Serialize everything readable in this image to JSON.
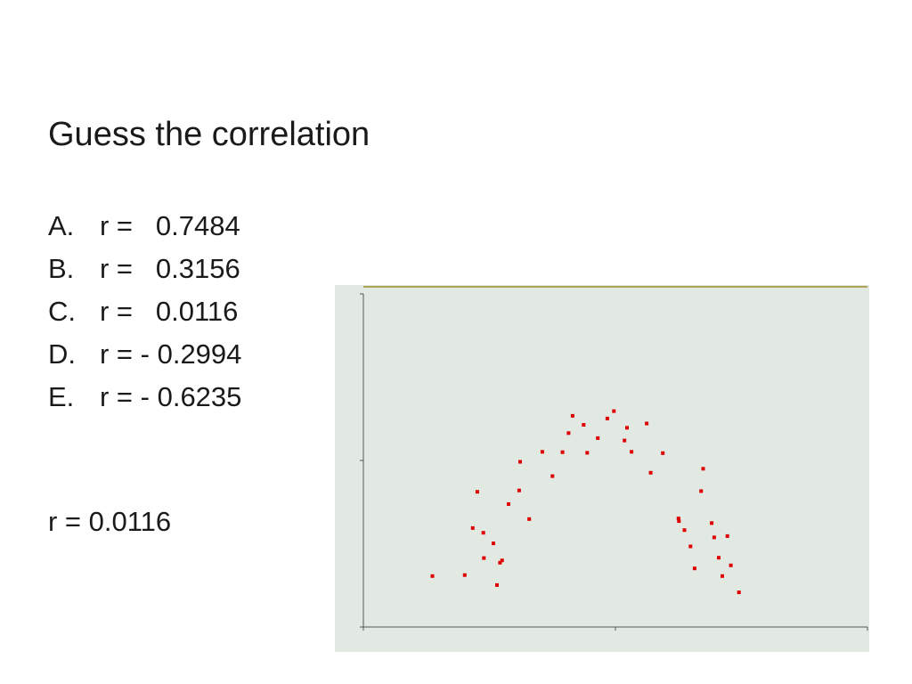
{
  "title": "Guess the correlation",
  "options": [
    {
      "letter": "A.",
      "text": "r =   0.7484"
    },
    {
      "letter": "B.",
      "text": "r =   0.3156"
    },
    {
      "letter": "C.",
      "text": "r =   0.0116"
    },
    {
      "letter": "D.",
      "text": "r = - 0.2994"
    },
    {
      "letter": "E.",
      "text": "r = - 0.6235"
    }
  ],
  "answer": "r = 0.0116",
  "colors": {
    "plot_background": "#e2e9e3",
    "point": "#dd0000",
    "axis": "#555555",
    "top_border": "#9a8a2a"
  },
  "chart_data": {
    "type": "scatter",
    "title": "",
    "xlabel": "",
    "ylabel": "",
    "xlim": [
      0,
      100
    ],
    "ylim": [
      0,
      100
    ],
    "grid": false,
    "legend": "none",
    "series": [
      {
        "points": [
          [
            13.7,
            15.3
          ],
          [
            20.1,
            15.6
          ],
          [
            23.8,
            28.3
          ],
          [
            22.6,
            40.6
          ],
          [
            27.5,
            20.0
          ],
          [
            25.8,
            25.1
          ],
          [
            23.9,
            20.7
          ],
          [
            26.5,
            12.6
          ],
          [
            21.7,
            29.7
          ],
          [
            27.1,
            19.3
          ],
          [
            28.8,
            36.9
          ],
          [
            31.1,
            49.6
          ],
          [
            30.9,
            41.0
          ],
          [
            32.9,
            32.4
          ],
          [
            35.5,
            52.6
          ],
          [
            37.5,
            45.3
          ],
          [
            39.5,
            52.5
          ],
          [
            40.7,
            58.2
          ],
          [
            41.5,
            63.4
          ],
          [
            43.7,
            60.7
          ],
          [
            44.4,
            52.3
          ],
          [
            46.5,
            56.7
          ],
          [
            48.4,
            62.6
          ],
          [
            49.7,
            64.8
          ],
          [
            51.8,
            56.0
          ],
          [
            52.3,
            59.8
          ],
          [
            53.2,
            52.6
          ],
          [
            56.2,
            61.1
          ],
          [
            57.0,
            46.3
          ],
          [
            59.4,
            52.2
          ],
          [
            62.5,
            32.6
          ],
          [
            62.6,
            31.8
          ],
          [
            63.7,
            29.1
          ],
          [
            64.9,
            24.2
          ],
          [
            65.7,
            17.6
          ],
          [
            67.0,
            40.8
          ],
          [
            67.4,
            47.5
          ],
          [
            69.1,
            31.2
          ],
          [
            69.6,
            26.9
          ],
          [
            70.5,
            20.8
          ],
          [
            71.2,
            15.3
          ],
          [
            72.2,
            27.3
          ],
          [
            72.9,
            18.5
          ],
          [
            74.5,
            10.4
          ]
        ]
      }
    ]
  }
}
